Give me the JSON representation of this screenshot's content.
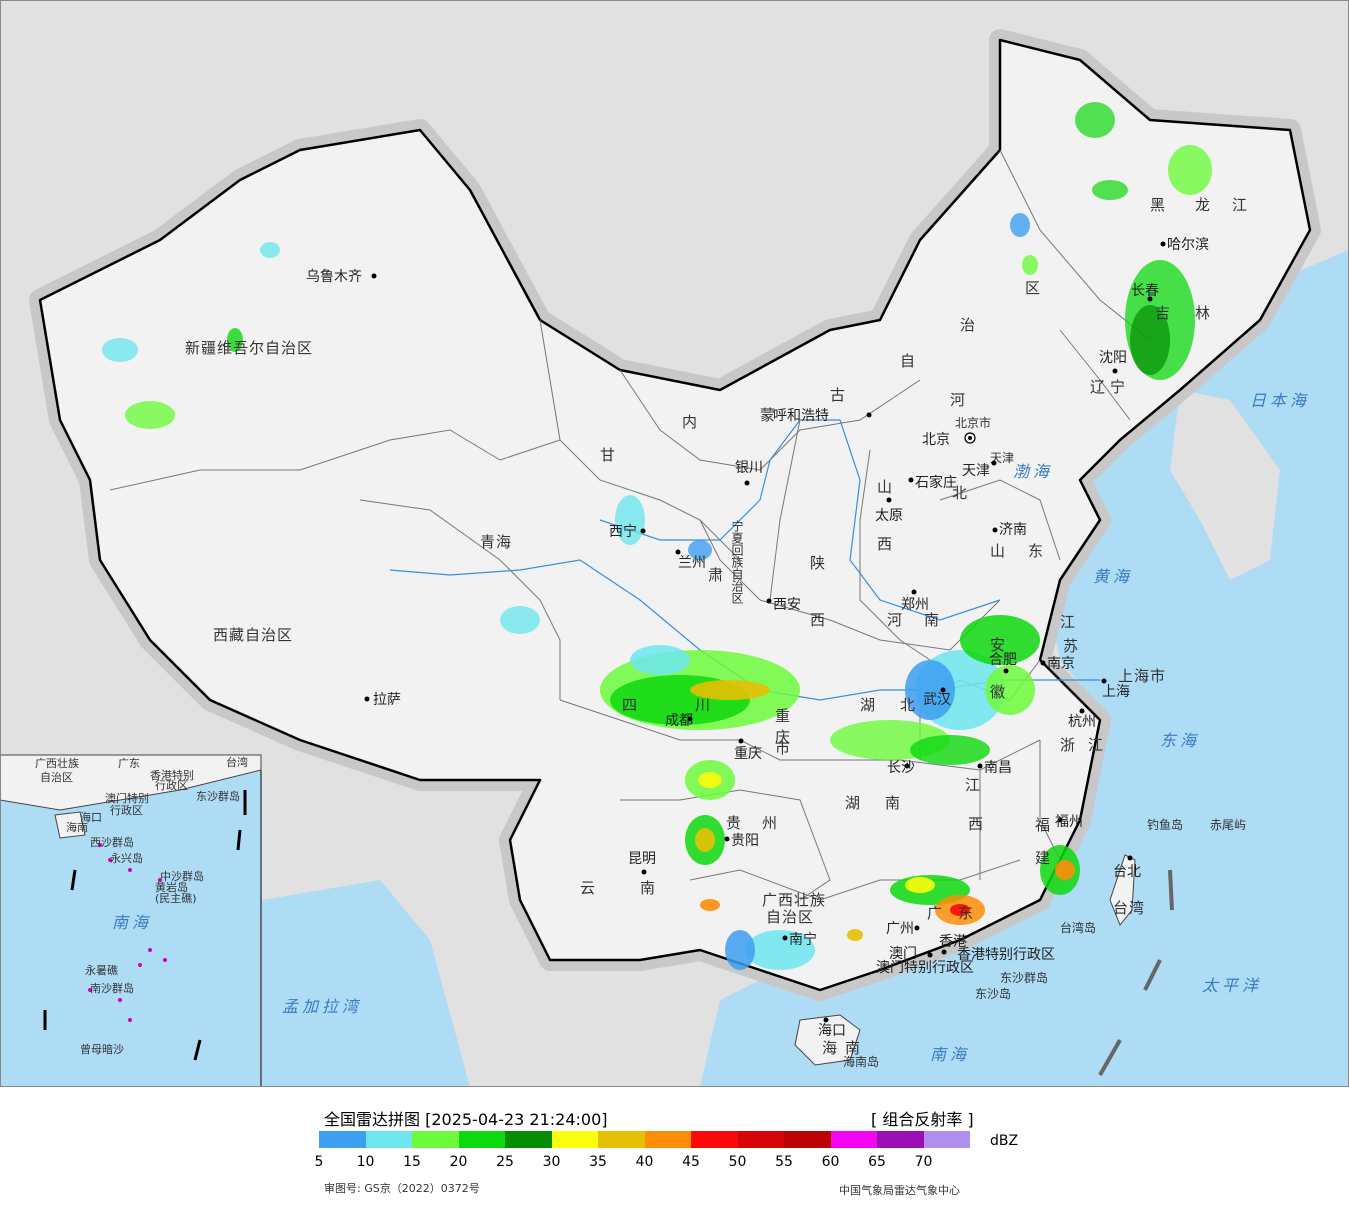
{
  "map": {
    "province_labels": [
      "新疆维吾尔自治区",
      "西藏自治区",
      "青海",
      "甘",
      "肃",
      "内",
      "蒙",
      "古",
      "自",
      "治",
      "区",
      "黑",
      "龙",
      "江",
      "吉",
      "林",
      "辽",
      "宁",
      "河",
      "北",
      "山",
      "西",
      "陕",
      "西",
      "河",
      "南",
      "山",
      "东",
      "江",
      "苏",
      "安",
      "徽",
      "湖",
      "北",
      "湖",
      "南",
      "四",
      "川",
      "重",
      "庆",
      "市",
      "贵",
      "州",
      "云",
      "南",
      "广西壮族",
      "自治区",
      "广",
      "东",
      "江",
      "西",
      "浙",
      "江",
      "福",
      "建",
      "上海市",
      "台湾",
      "海",
      "南",
      "宁夏回族自治区",
      "天津"
    ],
    "cities": [
      "乌鲁木齐",
      "拉萨",
      "西宁",
      "兰州",
      "银川",
      "呼和浩特",
      "北京",
      "北京市",
      "天津",
      "石家庄",
      "太原",
      "济南",
      "西安",
      "郑州",
      "合肥",
      "南京",
      "上海",
      "杭州",
      "武汉",
      "成都",
      "重庆",
      "贵阳",
      "长沙",
      "南昌",
      "福州",
      "台北",
      "昆明",
      "南宁",
      "广州",
      "香港",
      "澳门",
      "海口",
      "哈尔滨",
      "长春",
      "沈阳"
    ],
    "seas": [
      "日本海",
      "渤海",
      "黄海",
      "东海",
      "太平洋",
      "南海",
      "孟加拉湾"
    ],
    "islands": [
      "钓鱼岛",
      "赤尾屿",
      "台湾岛",
      "东沙群岛",
      "东沙岛",
      "海南岛"
    ],
    "sars": [
      "香港特别行政区",
      "澳门特别行政区"
    ],
    "inset": {
      "labels": [
        "广西壮族",
        "自治区",
        "广东",
        "香港特别",
        "行政区",
        "澳门特别",
        "行政区",
        "台湾",
        "东沙群岛",
        "海口",
        "海南",
        "西沙群岛",
        "永兴岛",
        "中沙群岛",
        "黄岩岛",
        "(民主礁)",
        "南海",
        "永暑礁",
        "南沙群岛",
        "曾母暗沙"
      ]
    }
  },
  "legend": {
    "title": "全国雷达拼图 [2025-04-23 21:24:00]",
    "product": "[ 组合反射率 ]",
    "unit": "dBZ",
    "ticks": [
      "5",
      "10",
      "15",
      "20",
      "25",
      "30",
      "35",
      "40",
      "45",
      "50",
      "55",
      "60",
      "65",
      "70"
    ],
    "colors": [
      "#3d9ff0",
      "#6ee6ee",
      "#6dfa3c",
      "#0ed80e",
      "#058c05",
      "#fbfc0e",
      "#e6c005",
      "#fc8e08",
      "#fb0909",
      "#d60606",
      "#bb0303",
      "#f406f4",
      "#9a0fb4",
      "#b08ff0"
    ],
    "approval": "审图号: GS京（2022）0372号",
    "agency": "中国气象局雷达气象中心"
  }
}
